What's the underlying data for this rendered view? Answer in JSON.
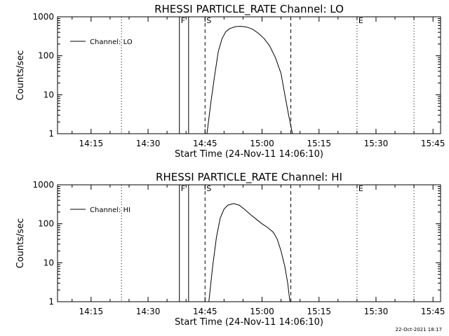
{
  "footer": {
    "timestamp": "22-Oct-2021 18:17"
  },
  "chart_data": [
    {
      "type": "line",
      "title": "RHESSI PARTICLE_RATE Channel: LO",
      "xlabel": "Start Time (24-Nov-11 14:06:10)",
      "ylabel": "Counts/sec",
      "yscale": "log",
      "xlim": [
        "14:06:10",
        "15:47:00"
      ],
      "ylim": [
        1,
        1000
      ],
      "xticks": [
        "14:15",
        "14:30",
        "14:45",
        "15:00",
        "15:15",
        "15:30",
        "15:45"
      ],
      "yticks": [
        "1",
        "10",
        "100",
        "1000"
      ],
      "legend": {
        "label": "Channel: LO",
        "position": "top-left"
      },
      "series": [
        {
          "name": "Channel: LO",
          "x": [
            "14:45:30",
            "14:46:30",
            "14:47:30",
            "14:48:30",
            "14:49:30",
            "14:50:30",
            "14:51:30",
            "14:53:00",
            "14:54:30",
            "14:56:00",
            "14:57:30",
            "14:59:00",
            "15:00:30",
            "15:02:00",
            "15:03:30",
            "15:05:00",
            "15:06:00",
            "15:07:00",
            "15:08:00"
          ],
          "y": [
            1,
            6,
            30,
            130,
            280,
            420,
            500,
            560,
            570,
            545,
            480,
            380,
            280,
            180,
            90,
            35,
            10,
            3,
            1
          ]
        }
      ],
      "vlines": [
        {
          "time": "14:23:00",
          "style": "dotted"
        },
        {
          "time": "14:38:15",
          "style": "solid",
          "label": "F"
        },
        {
          "time": "14:40:40",
          "style": "solid"
        },
        {
          "time": "14:45:00",
          "style": "dashed",
          "label": "S"
        },
        {
          "time": "15:07:35",
          "style": "dashed"
        },
        {
          "time": "15:25:00",
          "style": "dotted",
          "label": "E"
        },
        {
          "time": "15:40:00",
          "style": "dotted"
        }
      ]
    },
    {
      "type": "line",
      "title": "RHESSI PARTICLE_RATE Channel: HI",
      "xlabel": "Start Time (24-Nov-11 14:06:10)",
      "ylabel": "Counts/sec",
      "yscale": "log",
      "xlim": [
        "14:06:10",
        "15:47:00"
      ],
      "ylim": [
        1,
        1000
      ],
      "xticks": [
        "14:15",
        "14:30",
        "14:45",
        "15:00",
        "15:15",
        "15:30",
        "15:45"
      ],
      "yticks": [
        "1",
        "10",
        "100",
        "1000"
      ],
      "legend": {
        "label": "Channel: HI",
        "position": "top-left"
      },
      "series": [
        {
          "name": "Channel: HI",
          "x": [
            "14:46:00",
            "14:47:00",
            "14:48:00",
            "14:49:00",
            "14:50:00",
            "14:51:00",
            "14:52:30",
            "14:54:00",
            "14:55:30",
            "14:57:00",
            "14:58:30",
            "15:00:00",
            "15:01:30",
            "15:03:00",
            "15:04:00",
            "15:05:00",
            "15:06:00",
            "15:06:45",
            "15:07:20"
          ],
          "y": [
            1,
            8,
            45,
            140,
            240,
            300,
            330,
            300,
            230,
            170,
            130,
            100,
            80,
            60,
            40,
            20,
            8,
            3,
            1
          ]
        }
      ],
      "vlines": [
        {
          "time": "14:23:00",
          "style": "dotted"
        },
        {
          "time": "14:38:15",
          "style": "solid",
          "label": "F"
        },
        {
          "time": "14:40:40",
          "style": "solid"
        },
        {
          "time": "14:45:00",
          "style": "dashed",
          "label": "S"
        },
        {
          "time": "15:07:35",
          "style": "dashed"
        },
        {
          "time": "15:25:00",
          "style": "dotted",
          "label": "E"
        },
        {
          "time": "15:40:00",
          "style": "dotted"
        }
      ]
    }
  ]
}
